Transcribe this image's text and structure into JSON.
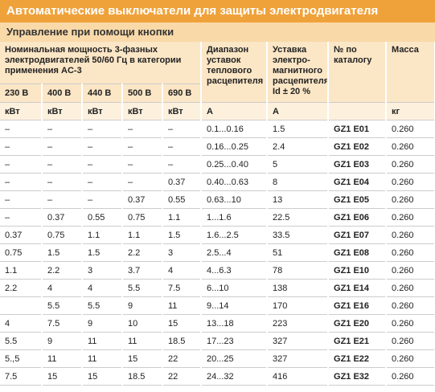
{
  "header": {
    "title": "Автоматические выключатели для защиты электродвигателя",
    "subtitle": "Управление при помощи кнопки"
  },
  "table": {
    "power_header": "Номинальная мощность 3-фазных электродвигателей 50/60 Гц в категории применения AC-3",
    "voltages": [
      "230 В",
      "400 В",
      "440 В",
      "500 В",
      "690 В"
    ],
    "columns": [
      "Диапазон уставок теплового расцепителя",
      "Уставка электро-магнитного расцепителя Id ± 20 %",
      "№ по каталогу",
      "Масса"
    ],
    "units": [
      "кВт",
      "кВт",
      "кВт",
      "кВт",
      "кВт",
      "A",
      "A",
      null,
      "кг"
    ],
    "rows": [
      [
        "–",
        "–",
        "–",
        "–",
        "–",
        "0.1...0.16",
        "1.5",
        "GZ1 E01",
        "0.260"
      ],
      [
        "–",
        "–",
        "–",
        "–",
        "–",
        "0.16...0.25",
        "2.4",
        "GZ1 E02",
        "0.260"
      ],
      [
        "–",
        "–",
        "–",
        "–",
        "–",
        "0.25...0.40",
        "5",
        "GZ1 E03",
        "0.260"
      ],
      [
        "–",
        "–",
        "–",
        "–",
        "0.37",
        "0.40...0.63",
        "8",
        "GZ1 E04",
        "0.260"
      ],
      [
        "–",
        "–",
        "–",
        "0.37",
        "0.55",
        "0.63...10",
        "13",
        "GZ1 E05",
        "0.260"
      ],
      [
        "–",
        "0.37",
        "0.55",
        "0.75",
        "1.1",
        "1...1.6",
        "22.5",
        "GZ1 E06",
        "0.260"
      ],
      [
        "0.37",
        "0.75",
        "1.1",
        "1.1",
        "1.5",
        "1.6...2.5",
        "33.5",
        "GZ1 E07",
        "0.260"
      ],
      [
        "0.75",
        "1.5",
        "1.5",
        "2.2",
        "3",
        "2.5...4",
        "51",
        "GZ1 E08",
        "0.260"
      ],
      [
        "1.1",
        "2.2",
        "3",
        "3.7",
        "4",
        "4...6.3",
        "78",
        "GZ1 E10",
        "0.260"
      ],
      [
        "2.2",
        "4",
        "4",
        "5.5",
        "7.5",
        "6...10",
        "138",
        "GZ1 E14",
        "0.260"
      ],
      [
        null,
        "5.5",
        "5.5",
        "9",
        "11",
        "9...14",
        "170",
        "GZ1 E16",
        "0.260"
      ],
      [
        "4",
        "7.5",
        "9",
        "10",
        "15",
        "13...18",
        "223",
        "GZ1 E20",
        "0.260"
      ],
      [
        "5.5",
        "9",
        "11",
        "11",
        "18.5",
        "17...23",
        "327",
        "GZ1 E21",
        "0.260"
      ],
      [
        "5.,5",
        "11",
        "11",
        "15",
        "22",
        "20...25",
        "327",
        "GZ1 E22",
        "0.260"
      ],
      [
        "7.5",
        "15",
        "15",
        "18.5",
        "22",
        "24...32",
        "416",
        "GZ1 E32",
        "0.260"
      ]
    ]
  }
}
